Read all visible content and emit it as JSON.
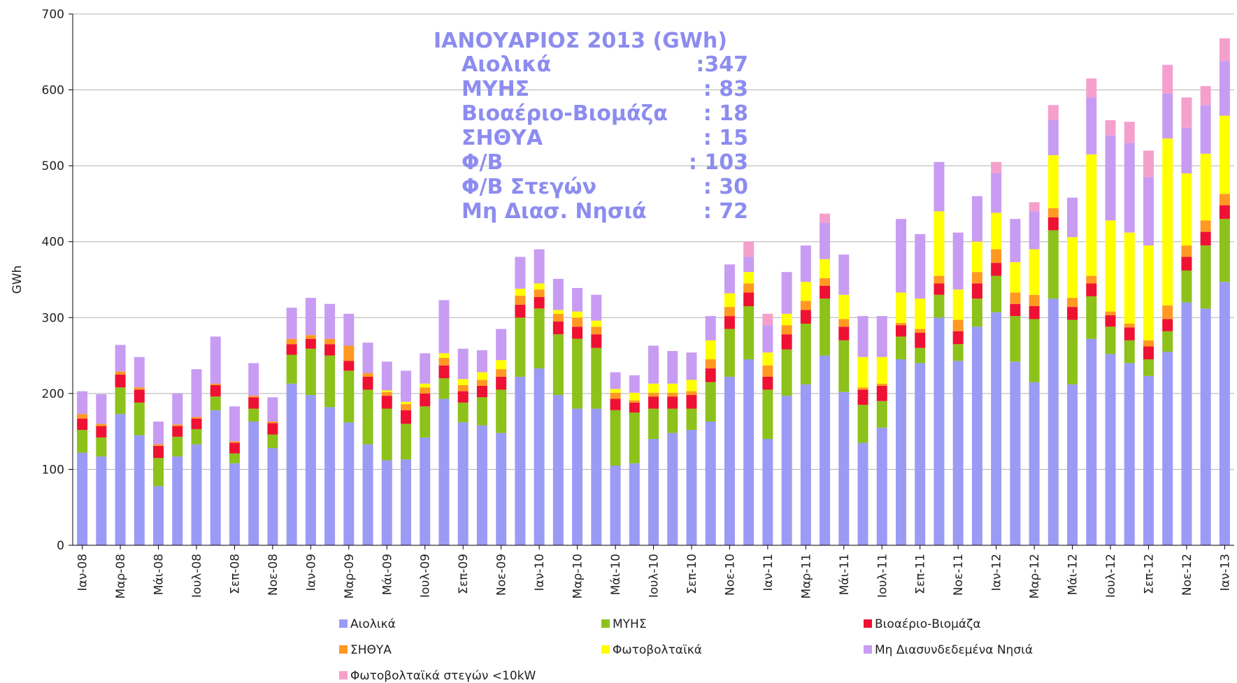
{
  "chart_data": {
    "type": "stacked_bar",
    "ylabel": "GWh",
    "categories": [
      "Ιαν-08",
      null,
      "Μαρ-08",
      null,
      "Μάι-08",
      null,
      "Ιουλ-08",
      null,
      "Σεπ-08",
      null,
      "Νοε-08",
      null,
      "Ιαν-09",
      null,
      "Μαρ-09",
      null,
      "Μάι-09",
      null,
      "Ιουλ-09",
      null,
      "Σεπ-09",
      null,
      "Νοε-09",
      null,
      "Ιαν-10",
      null,
      "Μαρ-10",
      null,
      "Μάι-10",
      null,
      "Ιουλ-10",
      null,
      "Σεπ-10",
      null,
      "Νοε-10",
      null,
      "Ιαν-11",
      null,
      "Μαρ-11",
      null,
      "Μάι-11",
      null,
      "Ιουλ-11",
      null,
      "Σεπ-11",
      null,
      "Νοε-11",
      null,
      "Ιαν-12",
      null,
      "Μαρ-12",
      null,
      "Μάι-12",
      null,
      "Ιουλ-12",
      null,
      "Σεπ-12",
      null,
      "Νοε-12",
      null,
      "Ιαν-13"
    ],
    "series": [
      {
        "name": "Αιολικά",
        "color": "#9b9bf5",
        "values": [
          122,
          117,
          173,
          145,
          78,
          117,
          133,
          178,
          108,
          163,
          128,
          213,
          198,
          182,
          162,
          133,
          112,
          113,
          142,
          193,
          162,
          158,
          148,
          222,
          233,
          198,
          180,
          180,
          105,
          108,
          140,
          148,
          152,
          163,
          222,
          245,
          140,
          197,
          212,
          250,
          202,
          135,
          155,
          245,
          240,
          300,
          243,
          288,
          307,
          242,
          215,
          325,
          212,
          272,
          252,
          240,
          223,
          255,
          320,
          312,
          347
        ]
      },
      {
        "name": "ΜΥΗΣ",
        "color": "#8cc21a",
        "values": [
          30,
          25,
          35,
          43,
          37,
          26,
          20,
          18,
          13,
          17,
          18,
          38,
          61,
          68,
          68,
          72,
          68,
          47,
          41,
          27,
          26,
          37,
          57,
          78,
          79,
          80,
          92,
          80,
          73,
          67,
          40,
          32,
          28,
          52,
          63,
          70,
          65,
          61,
          80,
          75,
          68,
          50,
          35,
          30,
          20,
          30,
          22,
          37,
          48,
          60,
          83,
          90,
          85,
          56,
          36,
          30,
          22,
          27,
          42,
          83,
          83
        ]
      },
      {
        "name": "Βιοαέριο-Βιομάζα",
        "color": "#ee1133",
        "values": [
          15,
          15,
          17,
          17,
          16,
          14,
          14,
          15,
          14,
          15,
          15,
          14,
          13,
          15,
          13,
          17,
          17,
          18,
          17,
          17,
          15,
          15,
          17,
          17,
          15,
          17,
          16,
          18,
          15,
          13,
          16,
          16,
          18,
          18,
          17,
          18,
          17,
          20,
          18,
          17,
          18,
          20,
          20,
          15,
          20,
          15,
          17,
          20,
          17,
          16,
          17,
          17,
          17,
          17,
          15,
          17,
          17,
          16,
          18,
          18,
          18
        ]
      },
      {
        "name": "ΣΗΘΥΑ",
        "color": "#ff9922",
        "values": [
          6,
          3,
          4,
          3,
          2,
          2,
          2,
          2,
          2,
          2,
          2,
          7,
          5,
          7,
          20,
          5,
          5,
          8,
          8,
          10,
          8,
          8,
          10,
          12,
          10,
          10,
          12,
          10,
          8,
          3,
          5,
          5,
          5,
          12,
          12,
          12,
          15,
          12,
          12,
          10,
          10,
          3,
          3,
          3,
          5,
          10,
          15,
          15,
          18,
          15,
          15,
          12,
          12,
          10,
          5,
          5,
          8,
          18,
          15,
          15,
          15
        ]
      },
      {
        "name": "Φωτοβολταϊκά",
        "color": "#ffff00",
        "values": [
          0,
          0,
          0,
          0,
          0,
          0,
          0,
          0,
          0,
          0,
          0,
          0,
          0,
          0,
          0,
          0,
          2,
          3,
          5,
          6,
          8,
          10,
          12,
          9,
          8,
          5,
          8,
          8,
          5,
          10,
          12,
          12,
          15,
          25,
          18,
          15,
          17,
          15,
          25,
          25,
          32,
          40,
          35,
          40,
          40,
          85,
          40,
          40,
          48,
          40,
          60,
          70,
          80,
          160,
          120,
          120,
          125,
          220,
          95,
          88,
          103
        ]
      },
      {
        "name": "Μη Διασυνδεδεμένα Νησιά",
        "color": "#c89cf2",
        "values": [
          30,
          39,
          35,
          40,
          30,
          41,
          63,
          62,
          46,
          43,
          32,
          41,
          49,
          46,
          42,
          40,
          38,
          41,
          40,
          70,
          40,
          29,
          41,
          42,
          45,
          41,
          31,
          34,
          22,
          23,
          50,
          43,
          36,
          32,
          38,
          20,
          36,
          55,
          48,
          48,
          53,
          54,
          54,
          97,
          85,
          65,
          75,
          60,
          52,
          57,
          50,
          46,
          52,
          75,
          112,
          118,
          90,
          59,
          60,
          64,
          72
        ]
      },
      {
        "name": "Φωτοβολταϊκά στεγών <10kW",
        "color": "#f5a0cc",
        "values": [
          0,
          0,
          0,
          0,
          0,
          0,
          0,
          0,
          0,
          0,
          0,
          0,
          0,
          0,
          0,
          0,
          0,
          0,
          0,
          0,
          0,
          0,
          0,
          0,
          0,
          0,
          0,
          0,
          0,
          0,
          0,
          0,
          0,
          0,
          0,
          20,
          15,
          0,
          0,
          12,
          0,
          0,
          0,
          0,
          0,
          0,
          0,
          0,
          15,
          0,
          12,
          20,
          0,
          25,
          20,
          28,
          35,
          38,
          40,
          25,
          30
        ]
      }
    ],
    "ylim": [
      0,
      700
    ],
    "yticks": [
      0,
      100,
      200,
      300,
      400,
      500,
      600,
      700
    ],
    "grid": true,
    "annotation": {
      "title": "ΙΑΝΟΥΑΡΙΟΣ 2013 (GWh)",
      "rows": [
        {
          "label": "Αιολικά",
          "value": ":347"
        },
        {
          "label": "ΜΥΗΣ",
          "value": ": 83"
        },
        {
          "label": "Βιοαέριο-Βιομάζα",
          "value": ": 18"
        },
        {
          "label": "ΣΗΘΥΑ",
          "value": ": 15"
        },
        {
          "label": "Φ/Β",
          "value": ": 103"
        },
        {
          "label": "Φ/Β Στεγών",
          "value": ": 30"
        },
        {
          "label": "Μη Διασ. Νησιά",
          "value": ": 72"
        }
      ]
    },
    "legend": "bottom"
  }
}
